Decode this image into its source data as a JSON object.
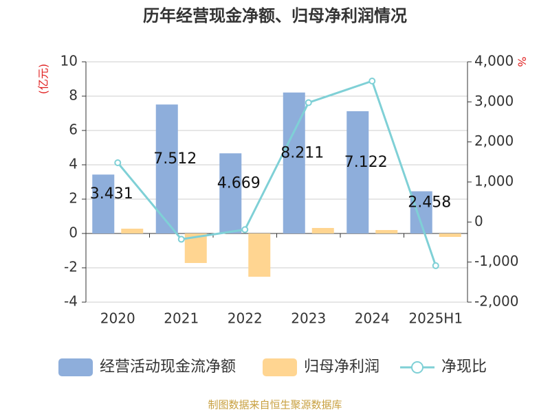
{
  "chart_data": {
    "type": "bar_line",
    "title": "历年经营现金净额、归母净利润情况",
    "y_label": "(亿元)",
    "y2_label": "%",
    "footer": "制图数据来自恒生聚源数据库",
    "categories": [
      "2020",
      "2021",
      "2022",
      "2023",
      "2024",
      "2025H1"
    ],
    "ylim": [
      -4,
      10
    ],
    "yticks": [
      -4,
      -2,
      0,
      2,
      4,
      6,
      8,
      10
    ],
    "y2lim": [
      -2000,
      4000
    ],
    "y2ticks": [
      {
        "value": -2000,
        "label": "-2,000"
      },
      {
        "value": -1000,
        "label": "-1,000"
      },
      0,
      {
        "value": 1000,
        "label": "1,000"
      },
      {
        "value": 2000,
        "label": "2,000"
      },
      {
        "value": 3000,
        "label": "3,000"
      },
      {
        "value": 4000,
        "label": "4,000"
      }
    ],
    "grid": true,
    "series": [
      {
        "name": "经营活动现金流净额",
        "kind": "bar",
        "color": "#8eaedb",
        "values": [
          3.431,
          7.512,
          4.669,
          8.211,
          7.122,
          2.458
        ],
        "show_labels": true
      },
      {
        "name": "归母净利润",
        "kind": "bar",
        "color": "#ffd591",
        "values": [
          0.28,
          -1.72,
          -2.52,
          0.32,
          0.2,
          -0.2
        ]
      },
      {
        "name": "净现比",
        "kind": "line",
        "axis": "y2",
        "color": "#7fd0d6",
        "values": [
          1480,
          -430,
          -190,
          2980,
          3520,
          -1090
        ]
      }
    ]
  }
}
